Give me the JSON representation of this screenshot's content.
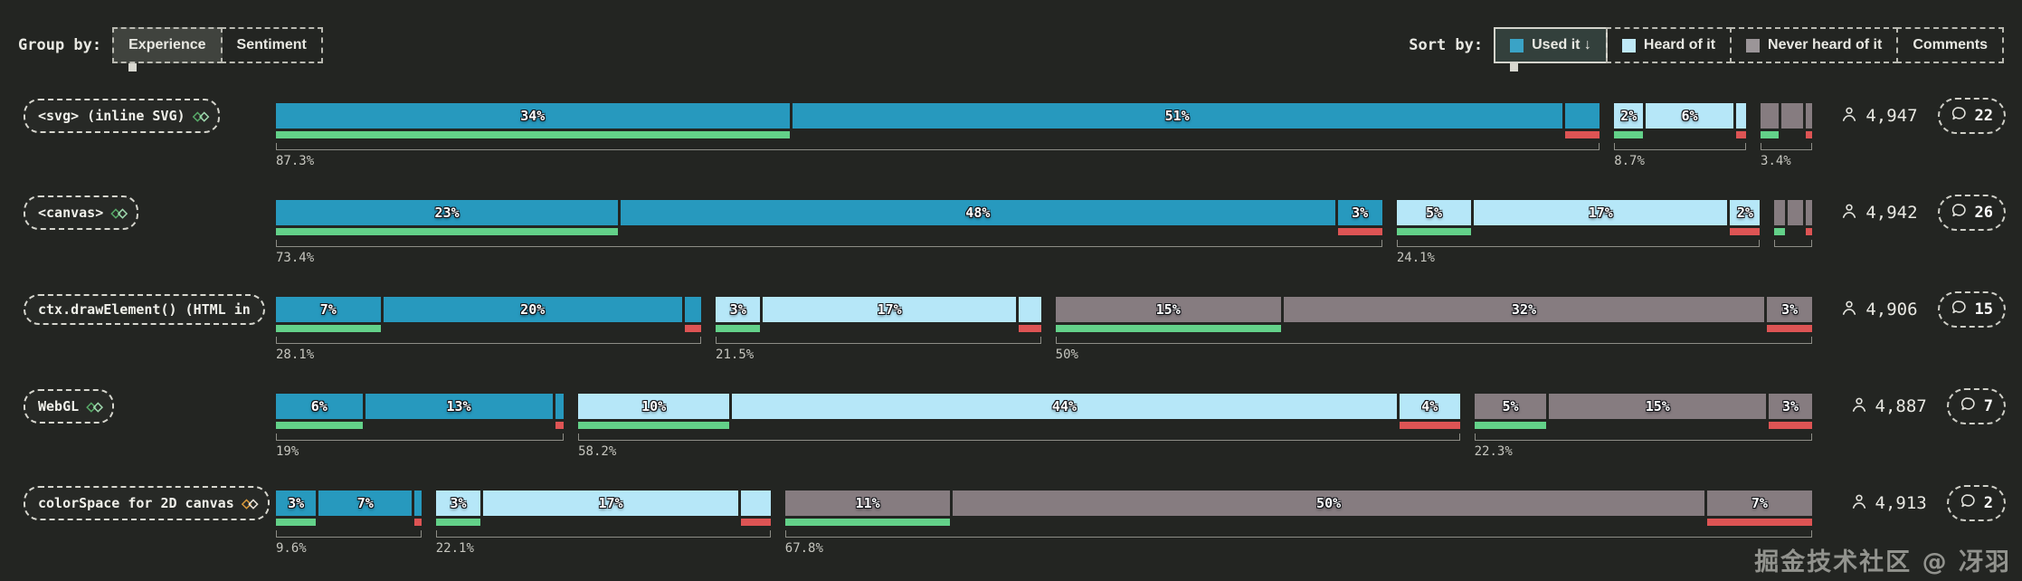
{
  "header": {
    "group_by": {
      "label": "Group by:",
      "options": [
        {
          "label": "Experience",
          "active": true
        },
        {
          "label": "Sentiment",
          "active": false
        }
      ]
    },
    "sort_by": {
      "label": "Sort by:",
      "options": [
        {
          "label": "Used it ↓",
          "swatch": "#3aa3c6",
          "active": true
        },
        {
          "label": "Heard of it",
          "swatch": "#bfe9f7",
          "active": false
        },
        {
          "label": "Never heard of it",
          "swatch": "#9b9598",
          "active": false
        },
        {
          "label": "Comments",
          "swatch": "",
          "active": false
        }
      ]
    }
  },
  "legend_colors": {
    "used_it": "#2799be",
    "heard_of_it": "#b6e7f8",
    "never_heard_of_it": "#867c80",
    "sentiment_positive": "#63d189",
    "sentiment_negative": "#dd5454"
  },
  "chart_data": {
    "type": "bar",
    "title": "",
    "unit": "percent of respondents",
    "groups_legend": [
      "Used it",
      "Heard of it",
      "Never heard of it"
    ],
    "rows": [
      {
        "feature": "<svg> (inline SVG)",
        "icon_colors": [
          "#57aa68",
          "#9fd8ae"
        ],
        "respondents": "4,947",
        "comments": "22",
        "groups": [
          {
            "name": "used_it",
            "color": "#2799be",
            "total": 87.3,
            "total_label": "87.3%",
            "segments": [
              {
                "value": 34,
                "label": "34%",
                "sentiment": "positive"
              },
              {
                "value": 51,
                "label": "51%",
                "sentiment": "neutral"
              },
              {
                "value": 2.3,
                "label": "",
                "sentiment": "negative"
              }
            ]
          },
          {
            "name": "heard_of_it",
            "color": "#b6e7f8",
            "total": 8.7,
            "total_label": "8.7%",
            "segments": [
              {
                "value": 2,
                "label": "2%",
                "sentiment": "positive"
              },
              {
                "value": 6,
                "label": "6%",
                "sentiment": "neutral"
              },
              {
                "value": 0.7,
                "label": "",
                "sentiment": "negative"
              }
            ]
          },
          {
            "name": "never_heard_of_it",
            "color": "#867c80",
            "total": 3.4,
            "total_label": "3.4%",
            "segments": [
              {
                "value": 1.3,
                "label": "",
                "sentiment": "positive"
              },
              {
                "value": 1.6,
                "label": "",
                "sentiment": "neutral"
              },
              {
                "value": 0.5,
                "label": "",
                "sentiment": "negative"
              }
            ]
          }
        ]
      },
      {
        "feature": "<canvas>",
        "icon_colors": [
          "#57aa68",
          "#9fd8ae"
        ],
        "respondents": "4,942",
        "comments": "26",
        "groups": [
          {
            "name": "used_it",
            "color": "#2799be",
            "total": 73.4,
            "total_label": "73.4%",
            "segments": [
              {
                "value": 23,
                "label": "23%",
                "sentiment": "positive"
              },
              {
                "value": 48,
                "label": "48%",
                "sentiment": "neutral"
              },
              {
                "value": 3,
                "label": "3%",
                "sentiment": "negative"
              }
            ]
          },
          {
            "name": "heard_of_it",
            "color": "#b6e7f8",
            "total": 24.1,
            "total_label": "24.1%",
            "segments": [
              {
                "value": 5,
                "label": "5%",
                "sentiment": "positive"
              },
              {
                "value": 17,
                "label": "17%",
                "sentiment": "neutral"
              },
              {
                "value": 2,
                "label": "2%",
                "sentiment": "negative"
              }
            ]
          },
          {
            "name": "never_heard_of_it",
            "color": "#867c80",
            "total": 2.5,
            "total_label": "",
            "segments": [
              {
                "value": 0.8,
                "label": "",
                "sentiment": "positive"
              },
              {
                "value": 1.2,
                "label": "",
                "sentiment": "neutral"
              },
              {
                "value": 0.5,
                "label": "",
                "sentiment": "negative"
              }
            ]
          }
        ]
      },
      {
        "feature": "ctx.drawElement() (HTML in",
        "icon_colors": [],
        "respondents": "4,906",
        "comments": "15",
        "groups": [
          {
            "name": "used_it",
            "color": "#2799be",
            "total": 28.1,
            "total_label": "28.1%",
            "segments": [
              {
                "value": 7,
                "label": "7%",
                "sentiment": "positive"
              },
              {
                "value": 20,
                "label": "20%",
                "sentiment": "neutral"
              },
              {
                "value": 1.1,
                "label": "",
                "sentiment": "negative"
              }
            ]
          },
          {
            "name": "heard_of_it",
            "color": "#b6e7f8",
            "total": 21.5,
            "total_label": "21.5%",
            "segments": [
              {
                "value": 3,
                "label": "3%",
                "sentiment": "positive"
              },
              {
                "value": 17,
                "label": "17%",
                "sentiment": "neutral"
              },
              {
                "value": 1.5,
                "label": "",
                "sentiment": "negative"
              }
            ]
          },
          {
            "name": "never_heard_of_it",
            "color": "#867c80",
            "total": 50,
            "total_label": "50%",
            "segments": [
              {
                "value": 15,
                "label": "15%",
                "sentiment": "positive"
              },
              {
                "value": 32,
                "label": "32%",
                "sentiment": "neutral"
              },
              {
                "value": 3,
                "label": "3%",
                "sentiment": "negative"
              }
            ]
          }
        ]
      },
      {
        "feature": "WebGL",
        "icon_colors": [
          "#57aa68",
          "#9fd8ae"
        ],
        "respondents": "4,887",
        "comments": "7",
        "groups": [
          {
            "name": "used_it",
            "color": "#2799be",
            "total": 19,
            "total_label": "19%",
            "segments": [
              {
                "value": 6,
                "label": "6%",
                "sentiment": "positive"
              },
              {
                "value": 13,
                "label": "13%",
                "sentiment": "neutral"
              },
              {
                "value": 0.6,
                "label": "",
                "sentiment": "negative"
              }
            ]
          },
          {
            "name": "heard_of_it",
            "color": "#b6e7f8",
            "total": 58.2,
            "total_label": "58.2%",
            "segments": [
              {
                "value": 10,
                "label": "10%",
                "sentiment": "positive"
              },
              {
                "value": 44,
                "label": "44%",
                "sentiment": "neutral"
              },
              {
                "value": 4,
                "label": "4%",
                "sentiment": "negative"
              }
            ]
          },
          {
            "name": "never_heard_of_it",
            "color": "#867c80",
            "total": 22.3,
            "total_label": "22.3%",
            "segments": [
              {
                "value": 5,
                "label": "5%",
                "sentiment": "positive"
              },
              {
                "value": 15,
                "label": "15%",
                "sentiment": "neutral"
              },
              {
                "value": 3,
                "label": "3%",
                "sentiment": "negative"
              }
            ]
          }
        ]
      },
      {
        "feature": "colorSpace for 2D canvas",
        "icon_colors": [
          "#d8993b",
          "#e9e4da"
        ],
        "respondents": "4,913",
        "comments": "2",
        "groups": [
          {
            "name": "used_it",
            "color": "#2799be",
            "total": 9.6,
            "total_label": "9.6%",
            "segments": [
              {
                "value": 3,
                "label": "3%",
                "sentiment": "positive"
              },
              {
                "value": 7,
                "label": "7%",
                "sentiment": "neutral"
              },
              {
                "value": 0.5,
                "label": "",
                "sentiment": "negative"
              }
            ]
          },
          {
            "name": "heard_of_it",
            "color": "#b6e7f8",
            "total": 22.1,
            "total_label": "22.1%",
            "segments": [
              {
                "value": 3,
                "label": "3%",
                "sentiment": "positive"
              },
              {
                "value": 17,
                "label": "17%",
                "sentiment": "neutral"
              },
              {
                "value": 2,
                "label": "",
                "sentiment": "negative"
              }
            ]
          },
          {
            "name": "never_heard_of_it",
            "color": "#867c80",
            "total": 67.8,
            "total_label": "67.8%",
            "segments": [
              {
                "value": 11,
                "label": "11%",
                "sentiment": "positive"
              },
              {
                "value": 50,
                "label": "50%",
                "sentiment": "neutral"
              },
              {
                "value": 7,
                "label": "7%",
                "sentiment": "negative"
              }
            ]
          }
        ]
      }
    ]
  },
  "watermark": "掘金技术社区 @ 冴羽"
}
